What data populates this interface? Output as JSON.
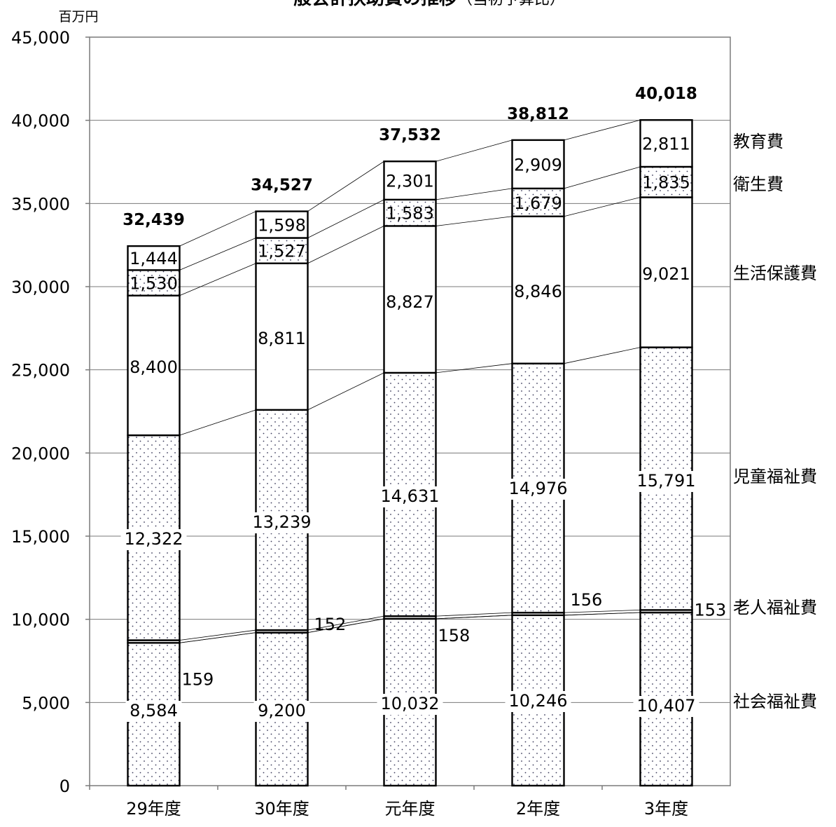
{
  "chart_data": {
    "type": "bar",
    "stacked": true,
    "title": "一般会計扶助費の推移",
    "subtitle": "（当初予算比）",
    "unit_label": "百万円",
    "categories": [
      "29年度",
      "30年度",
      "元年度",
      "2年度",
      "3年度"
    ],
    "ylim": [
      0,
      45000
    ],
    "yticks": [
      0,
      5000,
      10000,
      15000,
      20000,
      25000,
      30000,
      35000,
      40000,
      45000
    ],
    "ytick_labels": [
      "0",
      "5,000",
      "10,000",
      "15,000",
      "20,000",
      "25,000",
      "30,000",
      "35,000",
      "40,000",
      "45,000"
    ],
    "grid": true,
    "series": [
      {
        "name": "社会福祉費",
        "values": [
          8584,
          9200,
          10032,
          10246,
          10407
        ],
        "labels": [
          "8,584",
          "9,200",
          "10,032",
          "10,246",
          "10,407"
        ],
        "pattern": "dots"
      },
      {
        "name": "老人福祉費",
        "values": [
          159,
          152,
          158,
          156,
          153
        ],
        "labels": [
          "159",
          "152",
          "158",
          "156",
          "153"
        ],
        "pattern": "plain"
      },
      {
        "name": "児童福祉費",
        "values": [
          12322,
          13239,
          14631,
          14976,
          15791
        ],
        "labels": [
          "12,322",
          "13,239",
          "14,631",
          "14,976",
          "15,791"
        ],
        "pattern": "dots"
      },
      {
        "name": "生活保護費",
        "values": [
          8400,
          8811,
          8827,
          8846,
          9021
        ],
        "labels": [
          "8,400",
          "8,811",
          "8,827",
          "8,846",
          "9,021"
        ],
        "pattern": "plain"
      },
      {
        "name": "衛生費",
        "values": [
          1530,
          1527,
          1583,
          1679,
          1835
        ],
        "labels": [
          "1,530",
          "1,527",
          "1,583",
          "1,679",
          "1,835"
        ],
        "pattern": "dots"
      },
      {
        "name": "教育費",
        "values": [
          1444,
          1598,
          2301,
          2909,
          2811
        ],
        "labels": [
          "1,444",
          "1,598",
          "2,301",
          "2,909",
          "2,811"
        ],
        "pattern": "plain"
      }
    ],
    "totals": [
      32439,
      34527,
      37532,
      38812,
      40018
    ],
    "total_labels": [
      "32,439",
      "34,527",
      "37,532",
      "38,812",
      "40,018"
    ],
    "legend_placement": "right"
  }
}
